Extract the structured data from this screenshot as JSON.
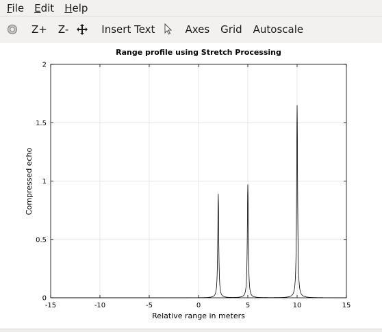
{
  "menu": {
    "file": "File",
    "edit": "Edit",
    "help": "Help"
  },
  "toolbar": {
    "rotate_icon": "rotate-icon",
    "zoom_in": "Z+",
    "zoom_out": "Z-",
    "pan_icon": "pan-icon",
    "insert_text": "Insert Text",
    "select_icon": "pointer-icon",
    "axes": "Axes",
    "grid": "Grid",
    "autoscale": "Autoscale"
  },
  "chart_data": {
    "type": "line",
    "title": "Range profile using Stretch Processing",
    "xlabel": "Relative range in meters",
    "ylabel": "Compressed echo",
    "xlim": [
      -15,
      15
    ],
    "ylim": [
      0,
      2
    ],
    "xticks": [
      "-15",
      "-10",
      "-5",
      "0",
      "5",
      "10",
      "15"
    ],
    "yticks": [
      "0",
      "0.5",
      "1",
      "1.5",
      "2"
    ],
    "grid": true,
    "line_color": "#000000",
    "series": [
      {
        "peaks": [
          {
            "x": 2.0,
            "y": 0.89
          },
          {
            "x": 5.0,
            "y": 0.97
          },
          {
            "x": 10.0,
            "y": 1.65
          }
        ],
        "baseline_ranges": [
          {
            "x_from": -15,
            "x_to": 0,
            "y": 0.0
          }
        ]
      }
    ]
  }
}
